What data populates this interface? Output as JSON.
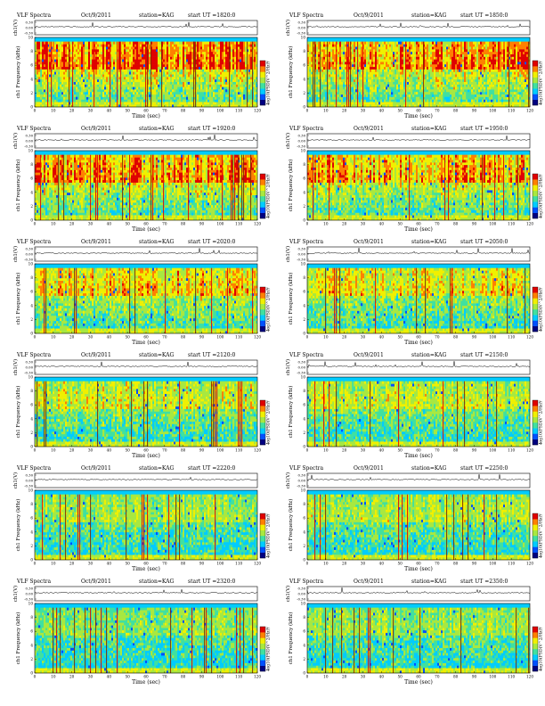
{
  "header": {
    "title": "VLF Spectra",
    "date": "Oct/9/2011",
    "station_label": "station=KAG",
    "start_label": "start UT =",
    "wave_ylabel": "ch1(V)",
    "spec_ylabel": "ch1\nFrequency (kHz)",
    "colorbar_label": "log10(PSD(V^2/Hz))"
  },
  "colors": {
    "background": "#ffffff",
    "colormap": [
      "#000080",
      "#0050ff",
      "#00ccff",
      "#40e0a0",
      "#a8e840",
      "#f0f000",
      "#ff8000",
      "#e00000"
    ]
  },
  "chart_data": [
    {
      "type": "heatmap",
      "start_ut": "1820:0",
      "xlabel": "Time (sec)",
      "ylabel": "Frequency (kHz)",
      "xlim": [
        0,
        120
      ],
      "ylim": [
        0,
        10
      ],
      "wave_ylim": [
        -0.3,
        0.3
      ],
      "wave_ticks": [
        "0.30",
        "0.00",
        "-0.30"
      ],
      "xticks": [
        0,
        10,
        20,
        30,
        40,
        50,
        60,
        70,
        80,
        90,
        100,
        110,
        120
      ],
      "yticks": [
        0,
        2,
        4,
        6,
        8,
        10
      ],
      "cbar_ticks": [
        "2",
        "-1"
      ],
      "activity": 0.92
    },
    {
      "type": "heatmap",
      "start_ut": "1850:0",
      "xlabel": "Time (sec)",
      "ylabel": "Frequency (kHz)",
      "xlim": [
        0,
        120
      ],
      "ylim": [
        0,
        10
      ],
      "wave_ylim": [
        -0.3,
        0.3
      ],
      "wave_ticks": [
        "0.30",
        "0.00",
        "-0.30"
      ],
      "xticks": [
        0,
        10,
        20,
        30,
        40,
        50,
        60,
        70,
        80,
        90,
        100,
        110,
        120
      ],
      "yticks": [
        0,
        2,
        4,
        6,
        8,
        10
      ],
      "cbar_ticks": [
        "2",
        "-1"
      ],
      "activity": 0.85
    },
    {
      "type": "heatmap",
      "start_ut": "1920:0",
      "xlabel": "Time (sec)",
      "ylabel": "Frequency (kHz)",
      "xlim": [
        0,
        120
      ],
      "ylim": [
        0,
        10
      ],
      "wave_ylim": [
        -0.3,
        0.3
      ],
      "wave_ticks": [
        "0.30",
        "0.00",
        "-0.30"
      ],
      "xticks": [
        0,
        10,
        20,
        30,
        40,
        50,
        60,
        70,
        80,
        90,
        100,
        110,
        120
      ],
      "yticks": [
        0,
        2,
        4,
        6,
        8,
        10
      ],
      "cbar_ticks": [
        "2",
        "-1"
      ],
      "activity": 0.8
    },
    {
      "type": "heatmap",
      "start_ut": "1950:0",
      "xlabel": "Time (sec)",
      "ylabel": "Frequency (kHz)",
      "xlim": [
        0,
        120
      ],
      "ylim": [
        0,
        10
      ],
      "wave_ylim": [
        -0.3,
        0.3
      ],
      "wave_ticks": [
        "0.30",
        "0.00",
        "-0.30"
      ],
      "xticks": [
        0,
        10,
        20,
        30,
        40,
        50,
        60,
        70,
        80,
        90,
        100,
        110,
        120
      ],
      "yticks": [
        0,
        2,
        4,
        6,
        8,
        10
      ],
      "cbar_ticks": [
        "2",
        "-1"
      ],
      "activity": 0.75
    },
    {
      "type": "heatmap",
      "start_ut": "2020:0",
      "xlabel": "Time (sec)",
      "ylabel": "Frequency (kHz)",
      "xlim": [
        0,
        120
      ],
      "ylim": [
        0,
        10
      ],
      "wave_ylim": [
        -0.3,
        0.3
      ],
      "wave_ticks": [
        "0.30",
        "0.00",
        "-0.30"
      ],
      "xticks": [
        0,
        10,
        20,
        30,
        40,
        50,
        60,
        70,
        80,
        90,
        100,
        110,
        120
      ],
      "yticks": [
        0,
        2,
        4,
        6,
        8,
        10
      ],
      "cbar_ticks": [
        "2",
        "-1"
      ],
      "activity": 0.68
    },
    {
      "type": "heatmap",
      "start_ut": "2050:0",
      "xlabel": "Time (sec)",
      "ylabel": "Frequency (kHz)",
      "xlim": [
        0,
        120
      ],
      "ylim": [
        0,
        10
      ],
      "wave_ylim": [
        -0.3,
        0.3
      ],
      "wave_ticks": [
        "0.30",
        "0.00",
        "-0.30"
      ],
      "xticks": [
        0,
        10,
        20,
        30,
        40,
        50,
        60,
        70,
        80,
        90,
        100,
        110,
        120
      ],
      "yticks": [
        0,
        2,
        4,
        6,
        8,
        10
      ],
      "cbar_ticks": [
        "2",
        "-1"
      ],
      "activity": 0.62
    },
    {
      "type": "heatmap",
      "start_ut": "2120:0",
      "xlabel": "Time (sec)",
      "ylabel": "Frequency (kHz)",
      "xlim": [
        0,
        120
      ],
      "ylim": [
        0,
        10
      ],
      "wave_ylim": [
        -0.3,
        0.3
      ],
      "wave_ticks": [
        "0.30",
        "0.00",
        "-0.30"
      ],
      "xticks": [
        0,
        10,
        20,
        30,
        40,
        50,
        60,
        70,
        80,
        90,
        100,
        110,
        120
      ],
      "yticks": [
        0,
        2,
        4,
        6,
        8,
        10
      ],
      "cbar_ticks": [
        "2",
        "-1"
      ],
      "activity": 0.55
    },
    {
      "type": "heatmap",
      "start_ut": "2150:0",
      "xlabel": "Time (sec)",
      "ylabel": "Frequency (kHz)",
      "xlim": [
        0,
        120
      ],
      "ylim": [
        0,
        10
      ],
      "wave_ylim": [
        -0.3,
        0.3
      ],
      "wave_ticks": [
        "0.30",
        "0.00",
        "-0.30"
      ],
      "xticks": [
        0,
        10,
        20,
        30,
        40,
        50,
        60,
        70,
        80,
        90,
        100,
        110,
        120
      ],
      "yticks": [
        0,
        2,
        4,
        6,
        8,
        10
      ],
      "cbar_ticks": [
        "2",
        "-1"
      ],
      "activity": 0.5
    },
    {
      "type": "heatmap",
      "start_ut": "2220:0",
      "xlabel": "Time (sec)",
      "ylabel": "Frequency (kHz)",
      "xlim": [
        0,
        120
      ],
      "ylim": [
        0,
        10
      ],
      "wave_ylim": [
        -0.3,
        0.3
      ],
      "wave_ticks": [
        "0.30",
        "0.00",
        "-0.30"
      ],
      "xticks": [
        0,
        10,
        20,
        30,
        40,
        50,
        60,
        70,
        80,
        90,
        100,
        110,
        120
      ],
      "yticks": [
        0,
        2,
        4,
        6,
        8,
        10
      ],
      "cbar_ticks": [
        "2",
        "-1"
      ],
      "activity": 0.42
    },
    {
      "type": "heatmap",
      "start_ut": "2250:0",
      "xlabel": "Time (sec)",
      "ylabel": "Frequency (kHz)",
      "xlim": [
        0,
        120
      ],
      "ylim": [
        0,
        10
      ],
      "wave_ylim": [
        -0.3,
        0.3
      ],
      "wave_ticks": [
        "0.30",
        "0.00",
        "-0.30"
      ],
      "xticks": [
        0,
        10,
        20,
        30,
        40,
        50,
        60,
        70,
        80,
        90,
        100,
        110,
        120
      ],
      "yticks": [
        0,
        2,
        4,
        6,
        8,
        10
      ],
      "cbar_ticks": [
        "2",
        "-1"
      ],
      "activity": 0.45
    },
    {
      "type": "heatmap",
      "start_ut": "2320:0",
      "xlabel": "Time (sec)",
      "ylabel": "Frequency (kHz)",
      "xlim": [
        0,
        120
      ],
      "ylim": [
        0,
        10
      ],
      "wave_ylim": [
        -0.3,
        0.3
      ],
      "wave_ticks": [
        "0.30",
        "0.00",
        "-0.30"
      ],
      "xticks": [
        0,
        10,
        20,
        30,
        40,
        50,
        60,
        70,
        80,
        90,
        100,
        110,
        120
      ],
      "yticks": [
        0,
        2,
        4,
        6,
        8,
        10
      ],
      "cbar_ticks": [
        "2",
        "-1"
      ],
      "activity": 0.35
    },
    {
      "type": "heatmap",
      "start_ut": "2350:0",
      "xlabel": "Time (sec)",
      "ylabel": "Frequency (kHz)",
      "xlim": [
        0,
        120
      ],
      "ylim": [
        0,
        10
      ],
      "wave_ylim": [
        -0.3,
        0.3
      ],
      "wave_ticks": [
        "0.30",
        "0.00",
        "-0.30"
      ],
      "xticks": [
        0,
        10,
        20,
        30,
        40,
        50,
        60,
        70,
        80,
        90,
        100,
        110,
        120
      ],
      "yticks": [
        0,
        2,
        4,
        6,
        8,
        10
      ],
      "cbar_ticks": [
        "2",
        "-1"
      ],
      "activity": 0.4
    }
  ]
}
